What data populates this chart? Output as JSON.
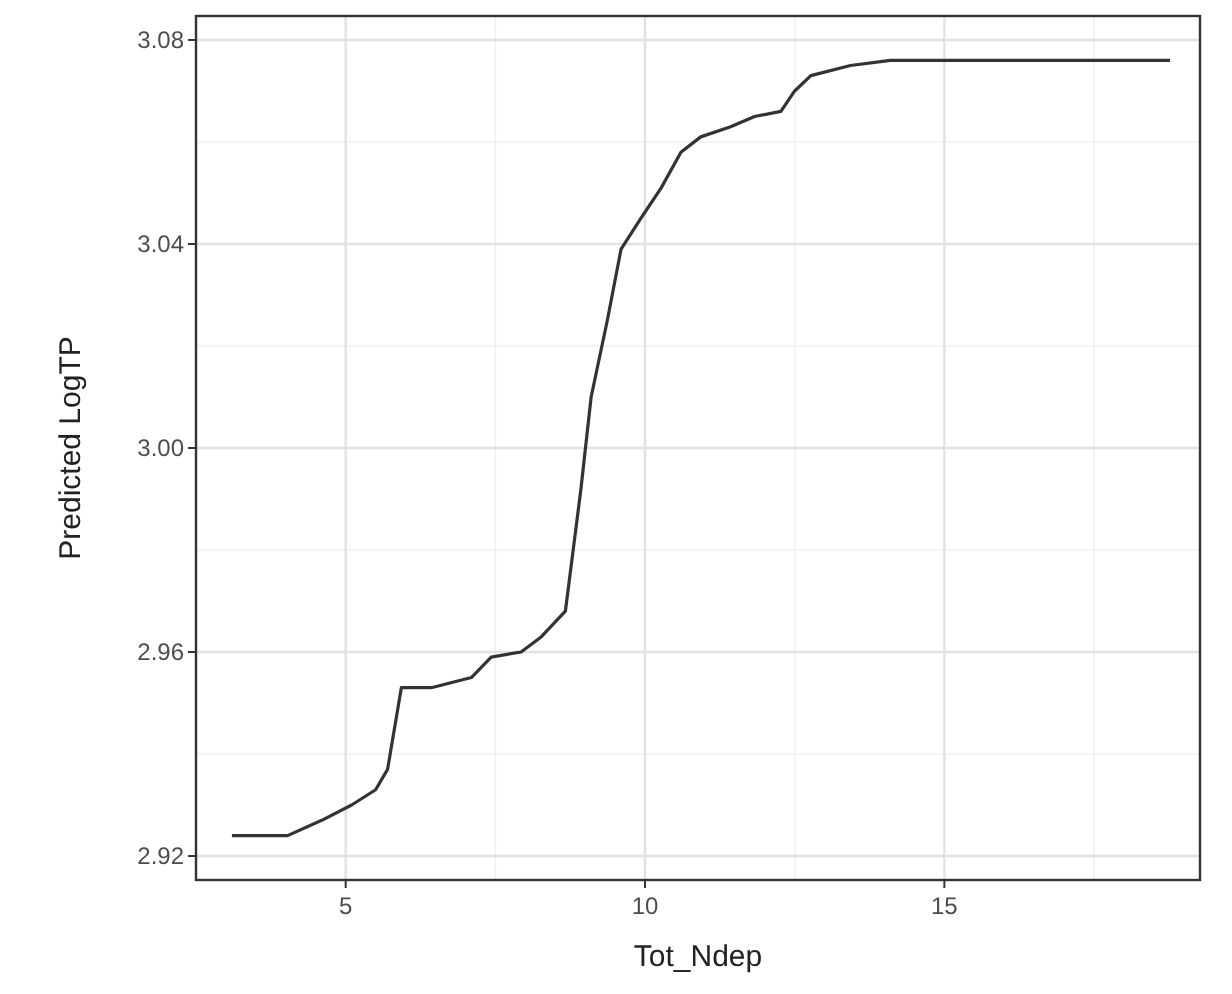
{
  "chart_data": {
    "type": "line",
    "xlabel": "Tot_Ndep",
    "ylabel": "Predicted LogTP",
    "x": [
      3.1,
      4.03,
      4.6,
      5.1,
      5.5,
      5.7,
      5.93,
      6.43,
      7.1,
      7.43,
      7.93,
      8.27,
      8.67,
      8.93,
      9.1,
      9.37,
      9.6,
      9.93,
      10.27,
      10.6,
      10.93,
      11.43,
      11.83,
      12.27,
      12.5,
      12.77,
      13.43,
      14.1,
      18.77
    ],
    "series": [
      {
        "color": "#333333",
        "values": [
          2.924,
          2.924,
          2.927,
          2.93,
          2.933,
          2.937,
          2.953,
          2.953,
          2.955,
          2.959,
          2.96,
          2.963,
          2.968,
          2.992,
          3.01,
          3.025,
          3.039,
          3.045,
          3.051,
          3.058,
          3.061,
          3.063,
          3.065,
          3.066,
          3.07,
          3.073,
          3.075,
          3.076,
          3.076
        ]
      }
    ],
    "xlim": [
      2.5,
      19.27
    ],
    "xticks": [
      5,
      10,
      15
    ],
    "ylim": [
      2.9153,
      3.0847
    ],
    "yticks": [
      {
        "value": 2.92,
        "label": "2.92"
      },
      {
        "value": 2.96,
        "label": "2.96"
      },
      {
        "value": 3.0,
        "label": "3.00"
      },
      {
        "value": 3.04,
        "label": "3.04"
      },
      {
        "value": 3.08,
        "label": "3.08"
      }
    ],
    "grid": true,
    "marker": "none",
    "line_style": "solid"
  }
}
